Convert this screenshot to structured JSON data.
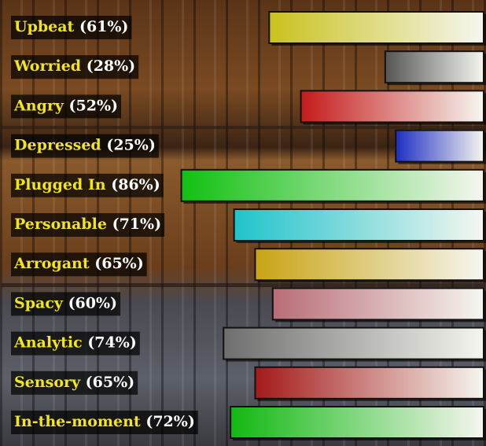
{
  "chart_data": {
    "type": "bar",
    "orientation": "horizontal",
    "categories": [
      "Upbeat",
      "Worried",
      "Angry",
      "Depressed",
      "Plugged In",
      "Personable",
      "Arrogant",
      "Spacy",
      "Analytic",
      "Sensory",
      "In-the-moment"
    ],
    "values": [
      61,
      28,
      52,
      25,
      86,
      71,
      65,
      60,
      74,
      65,
      72
    ],
    "value_labels": [
      "(61%)",
      "(28%)",
      "(52%)",
      "(25%)",
      "(86%)",
      "(71%)",
      "(65%)",
      "(60%)",
      "(74%)",
      "(65%)",
      "(72%)"
    ],
    "colors": [
      "#c9c21e",
      "#555555",
      "#c41a1a",
      "#1e2fc2",
      "#12c012",
      "#1fc3cb",
      "#c9a414",
      "#b86c76",
      "#6e6e6e",
      "#a31a1a",
      "#12b812"
    ],
    "xlim": [
      0,
      100
    ]
  }
}
